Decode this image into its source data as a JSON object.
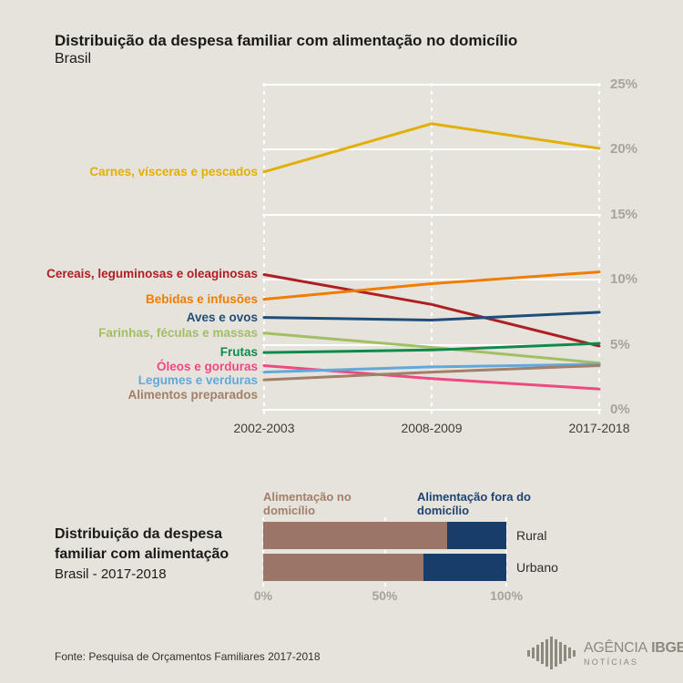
{
  "background": "#e6e3dc",
  "chart_data": [
    {
      "type": "line",
      "title": "Distribuição da despesa familiar com alimentação no domicílio",
      "subtitle": "Brasil",
      "x": [
        "2002-2003",
        "2008-2009",
        "2017-2018"
      ],
      "ylim": [
        0,
        25
      ],
      "grid": "horizontal-white-solid, vertical-white-dashed-at-each-x",
      "legend_position": "left-of-first-point",
      "yticks": [
        {
          "value": 0,
          "label": "0%"
        },
        {
          "value": 5,
          "label": "5%"
        },
        {
          "value": 10,
          "label": "10%"
        },
        {
          "value": 15,
          "label": "15%"
        },
        {
          "value": 20,
          "label": "20%"
        },
        {
          "value": 25,
          "label": "25%"
        }
      ],
      "series": [
        {
          "name": "Carnes, vísceras e pescados",
          "color": "#e2af05",
          "values": [
            18.3,
            22.0,
            20.1
          ]
        },
        {
          "name": "Cereais, leguminosas e oleaginosas",
          "color": "#ad1f23",
          "values": [
            10.4,
            8.1,
            4.9
          ]
        },
        {
          "name": "Bebidas e infusões",
          "color": "#ef7d00",
          "values": [
            8.5,
            9.7,
            10.6
          ]
        },
        {
          "name": "Aves e ovos",
          "color": "#1e4d78",
          "values": [
            7.1,
            6.9,
            7.5
          ]
        },
        {
          "name": "Farinhas, féculas e massas",
          "color": "#a2bf62",
          "values": [
            5.9,
            4.8,
            3.6
          ]
        },
        {
          "name": "Frutas",
          "color": "#0f8a4d",
          "values": [
            4.4,
            4.6,
            5.1
          ]
        },
        {
          "name": "Óleos e gorduras",
          "color": "#ee4a82",
          "values": [
            3.4,
            2.4,
            1.6
          ]
        },
        {
          "name": "Legumes e verduras",
          "color": "#63a8da",
          "values": [
            2.9,
            3.3,
            3.5
          ]
        },
        {
          "name": "Alimentos preparados",
          "color": "#a17f69",
          "values": [
            2.3,
            2.9,
            3.4
          ]
        }
      ]
    },
    {
      "type": "bar",
      "orientation": "horizontal-stacked",
      "title": "Distribuição da despesa familiar com alimentação",
      "subtitle": "Brasil - 2017-2018",
      "categories": [
        "Rural",
        "Urbano"
      ],
      "xlim": [
        0,
        100
      ],
      "xticks": [
        {
          "value": 0,
          "label": "0%"
        },
        {
          "value": 50,
          "label": "50%"
        },
        {
          "value": 100,
          "label": "100%"
        }
      ],
      "series": [
        {
          "name": "Alimentação no domicílio",
          "color": "#9b7568",
          "label_color": "#a17f69",
          "values": [
            75.8,
            66.1
          ]
        },
        {
          "name": "Alimentação fora do domicílio",
          "color": "#173e6b",
          "label_color": "#1c4472",
          "values": [
            24.2,
            33.9
          ]
        }
      ]
    }
  ],
  "footer": {
    "source": "Fonte: Pesquisa de Orçamentos Familiares 2017-2018"
  },
  "logo": {
    "icon": "equalizer-bars-icon",
    "name_regular": "AGÊNCIA",
    "name_bold": "IBGE",
    "tagline": "NOTÍCIAS",
    "color": "#8e897f"
  }
}
